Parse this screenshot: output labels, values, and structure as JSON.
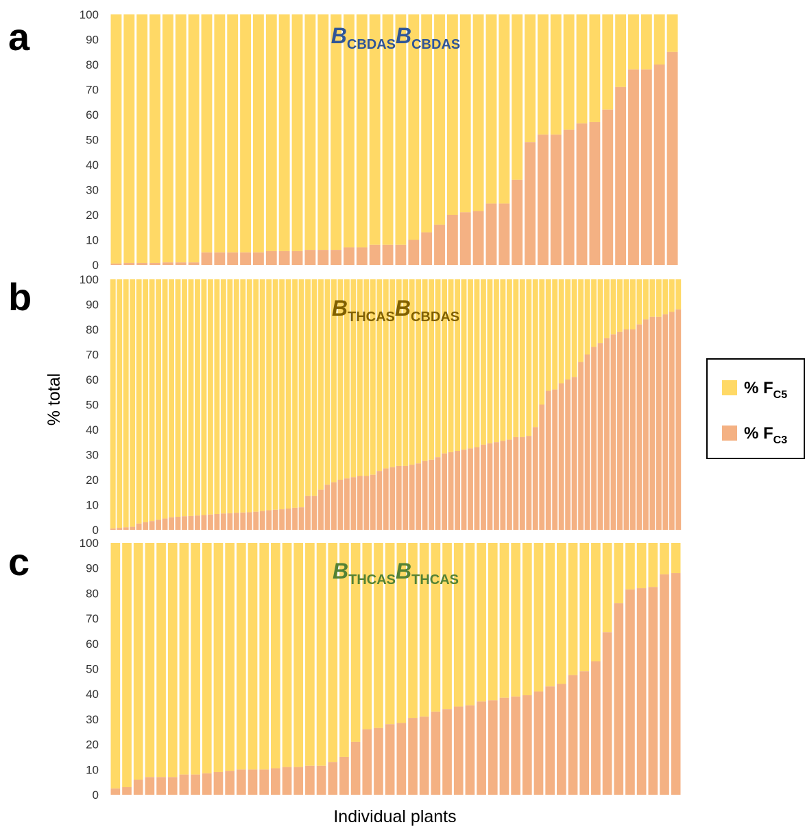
{
  "colors": {
    "fc5": "#ffd966",
    "fc3": "#f4b183",
    "blue": "#2f5597",
    "gold": "#806000",
    "green": "#548235"
  },
  "ylabel": "% total",
  "xlabel": "Individual plants",
  "legend": [
    {
      "prefix": "% F",
      "sub": "C5",
      "color": "#ffd966"
    },
    {
      "prefix": "% F",
      "sub": "C3",
      "color": "#f4b183"
    }
  ],
  "chart_data": [
    {
      "type": "bar",
      "stacked": true,
      "panel": "a",
      "genotype": {
        "allele1": "B",
        "sub1": "CBDAS",
        "allele2": "B",
        "sub2": "CBDAS",
        "color": "#2f5597"
      },
      "ylim": [
        0,
        100
      ],
      "yticks": [
        0,
        10,
        20,
        30,
        40,
        50,
        60,
        70,
        80,
        90,
        100
      ],
      "series": [
        {
          "name": "% FC3",
          "values": [
            0.5,
            0.8,
            0.8,
            0.8,
            1,
            1,
            1,
            5,
            5,
            5,
            5,
            5,
            5.5,
            5.5,
            5.5,
            6,
            6,
            6,
            7,
            7,
            8,
            8,
            8,
            10,
            13,
            16,
            20,
            21,
            21.5,
            24.5,
            24.5,
            34,
            49,
            52,
            52,
            54,
            56.5,
            57,
            62,
            71,
            78,
            78,
            80,
            85
          ]
        },
        {
          "name": "% FC5",
          "values": [
            99.5,
            99.2,
            99.2,
            99.2,
            99,
            99,
            99,
            95,
            95,
            95,
            95,
            95,
            94.5,
            94.5,
            94.5,
            94,
            94,
            94,
            93,
            93,
            92,
            92,
            92,
            90,
            87,
            84,
            80,
            79,
            78.5,
            75.5,
            75.5,
            66,
            51,
            48,
            48,
            46,
            43.5,
            43,
            38,
            29,
            22,
            22,
            20,
            15
          ]
        }
      ]
    },
    {
      "type": "bar",
      "stacked": true,
      "panel": "b",
      "genotype": {
        "allele1": "B",
        "sub1": "THCAS",
        "allele2": "B",
        "sub2": "CBDAS",
        "color": "#806000"
      },
      "ylim": [
        0,
        100
      ],
      "yticks": [
        0,
        10,
        20,
        30,
        40,
        50,
        60,
        70,
        80,
        90,
        100
      ],
      "series": [
        {
          "name": "% FC3",
          "values": [
            0.5,
            0.8,
            1,
            1.2,
            2.5,
            3,
            3.5,
            4,
            4.5,
            5,
            5.2,
            5.4,
            5.5,
            5.7,
            5.9,
            6.1,
            6.3,
            6.5,
            6.6,
            6.8,
            6.9,
            7,
            7.2,
            7.5,
            7.8,
            8,
            8.2,
            8.5,
            8.8,
            9,
            13.5,
            13.5,
            16,
            18,
            19,
            20,
            20.5,
            21,
            21.5,
            21.5,
            22,
            23.5,
            24.5,
            25,
            25.5,
            25.5,
            26,
            26.5,
            27.5,
            28,
            29,
            30.5,
            31,
            31.5,
            32,
            32.5,
            33,
            34,
            34.5,
            35,
            35.5,
            36,
            37,
            37,
            37.5,
            41,
            50,
            55.5,
            56,
            58.5,
            60,
            61,
            67,
            70,
            73,
            74.5,
            76.5,
            78,
            79,
            80,
            80,
            82,
            84,
            85,
            85,
            86,
            87,
            88
          ]
        },
        {
          "name": "% FC5",
          "values": [
            99.5,
            99.2,
            99,
            98.8,
            97.5,
            97,
            96.5,
            96,
            95.5,
            95,
            94.8,
            94.6,
            94.5,
            94.3,
            94.1,
            93.9,
            93.7,
            93.5,
            93.4,
            93.2,
            93.1,
            93,
            92.8,
            92.5,
            92.2,
            92,
            91.8,
            91.5,
            91.2,
            91,
            86.5,
            86.5,
            84,
            82,
            81,
            80,
            79.5,
            79,
            78.5,
            78.5,
            78,
            76.5,
            75.5,
            75,
            74.5,
            74.5,
            74,
            73.5,
            72.5,
            72,
            71,
            69.5,
            69,
            68.5,
            68,
            67.5,
            67,
            66,
            65.5,
            65,
            64.5,
            64,
            63,
            63,
            62.5,
            59,
            50,
            44.5,
            44,
            41.5,
            40,
            39,
            33,
            30,
            27,
            25.5,
            23.5,
            22,
            21,
            20,
            20,
            18,
            16,
            15,
            15,
            14,
            13,
            12
          ]
        }
      ]
    },
    {
      "type": "bar",
      "stacked": true,
      "panel": "c",
      "genotype": {
        "allele1": "B",
        "sub1": "THCAS",
        "allele2": "B",
        "sub2": "THCAS",
        "color": "#548235"
      },
      "ylim": [
        0,
        100
      ],
      "yticks": [
        0,
        10,
        20,
        30,
        40,
        50,
        60,
        70,
        80,
        90,
        100
      ],
      "series": [
        {
          "name": "% FC3",
          "values": [
            2.5,
            3,
            6,
            7,
            7,
            7,
            8,
            8,
            8.5,
            9,
            9.5,
            10,
            10,
            10,
            10.5,
            11,
            11,
            11.5,
            11.5,
            13,
            15,
            21,
            26,
            26.5,
            28,
            28.5,
            30.5,
            31,
            33,
            34,
            35,
            35.5,
            37,
            37.5,
            38.5,
            39,
            39.5,
            41,
            43,
            44,
            47.5,
            49,
            53,
            64.5,
            76,
            81.5,
            82,
            82.5,
            87.5,
            88
          ]
        },
        {
          "name": "% FC5",
          "values": [
            97.5,
            97,
            94,
            93,
            93,
            93,
            92,
            92,
            91.5,
            91,
            90.5,
            90,
            90,
            90,
            89.5,
            89,
            89,
            88.5,
            88.5,
            87,
            85,
            79,
            74,
            73.5,
            72,
            71.5,
            69.5,
            69,
            67,
            66,
            65,
            64.5,
            63,
            62.5,
            61.5,
            61,
            60.5,
            59,
            57,
            56,
            52.5,
            51,
            47,
            35.5,
            24,
            18.5,
            18,
            17.5,
            12.5,
            12
          ]
        }
      ]
    }
  ]
}
